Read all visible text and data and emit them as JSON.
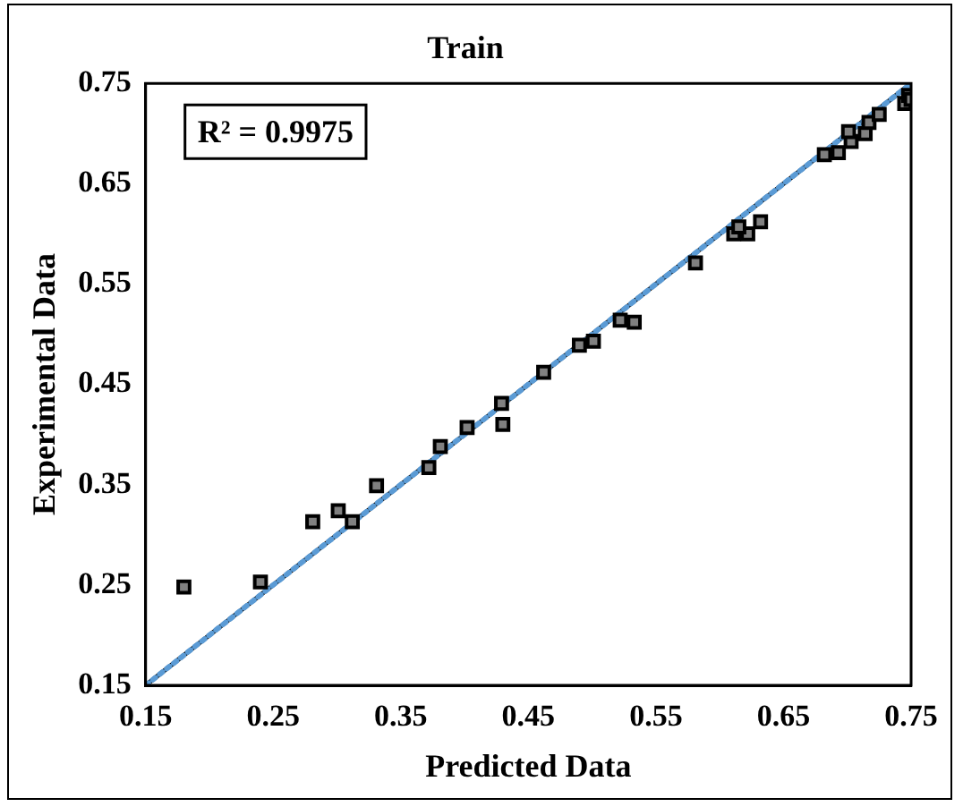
{
  "chart_data": {
    "type": "scatter",
    "title": "Train",
    "xlabel": "Predicted Data",
    "ylabel": "Experimental Data",
    "annotations": [
      "R² = 0.9975"
    ],
    "xlim": [
      0.15,
      0.75
    ],
    "xticks": [
      0.15,
      0.25,
      0.35,
      0.45,
      0.55,
      0.65,
      0.75
    ],
    "ylim": [
      0.15,
      0.75
    ],
    "yticks": [
      0.15,
      0.25,
      0.35,
      0.45,
      0.55,
      0.65,
      0.75
    ],
    "legend": false,
    "series": [
      {
        "type": "line",
        "color": "#000000",
        "line_style": "solid",
        "marker": "none",
        "x": [
          0.15,
          0.75
        ],
        "values": [
          0.15,
          0.75
        ]
      },
      {
        "type": "line",
        "color": "#5b9bd5",
        "line_style": "dotted",
        "marker": "none",
        "x": [
          0.15,
          0.75
        ],
        "values": [
          0.15,
          0.75
        ]
      },
      {
        "color": "#808080",
        "marker": "square",
        "x": [
          0.18,
          0.24,
          0.281,
          0.301,
          0.312,
          0.331,
          0.372,
          0.381,
          0.402,
          0.43,
          0.429,
          0.462,
          0.49,
          0.501,
          0.522,
          0.533,
          0.581,
          0.611,
          0.622,
          0.632,
          0.615,
          0.682,
          0.693,
          0.703,
          0.701,
          0.714,
          0.717,
          0.725,
          0.745,
          0.748,
          0.75
        ],
        "values": [
          0.248,
          0.253,
          0.313,
          0.324,
          0.313,
          0.349,
          0.367,
          0.388,
          0.407,
          0.41,
          0.431,
          0.462,
          0.489,
          0.493,
          0.514,
          0.512,
          0.571,
          0.6,
          0.6,
          0.612,
          0.607,
          0.679,
          0.681,
          0.692,
          0.702,
          0.7,
          0.711,
          0.719,
          0.73,
          0.738,
          0.734
        ]
      }
    ]
  }
}
